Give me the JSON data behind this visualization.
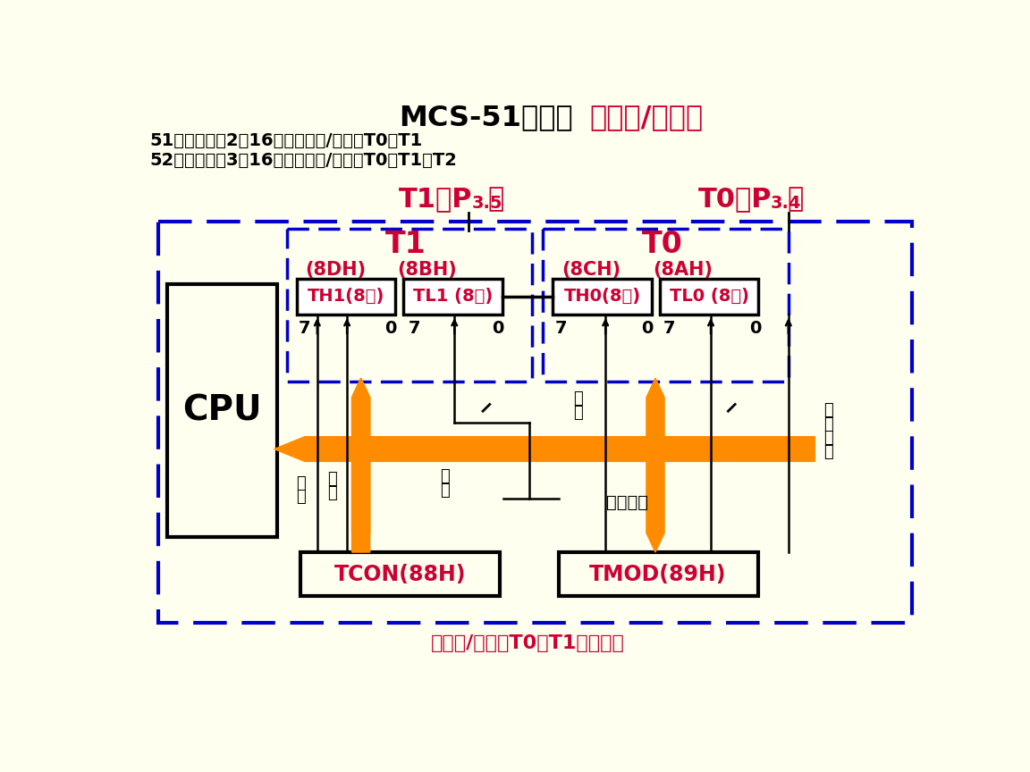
{
  "bg_color": "#FFFFF0",
  "title_black": "MCS-51单片机",
  "title_red": "定时器/计数器",
  "subtitle1": "51系列内部有2个16位的定时器/计数器T0、T1",
  "subtitle2": "52系列内部有3个16位的定时器/计数器T0、T1、T2",
  "footer": "定时器/计数器T0、T1逻辑结构",
  "t1_label": "T1",
  "t0_label": "T0",
  "th1": "TH1(8位)",
  "tl1": "TL1 (8位)",
  "th0": "TH0(8位)",
  "tl0": "TL0 (8位)",
  "addr_8dh": "(8DH)",
  "addr_8bh": "(8BH)",
  "addr_8ch": "(8CH)",
  "addr_8ah": "(8AH)",
  "tcon": "TCON(88H)",
  "tmod": "TMOD(89H)",
  "cpu": "CPU",
  "yi_chu": "溢出",
  "qi_dong": "启动",
  "gong_zuo_fang_shi": "工作方式",
  "blue": "#0000CC",
  "orange": "#FF8C00",
  "crimson": "#CC0033",
  "black": "#000000",
  "white": "#FFFFFF",
  "bg": "#FFFFF0"
}
